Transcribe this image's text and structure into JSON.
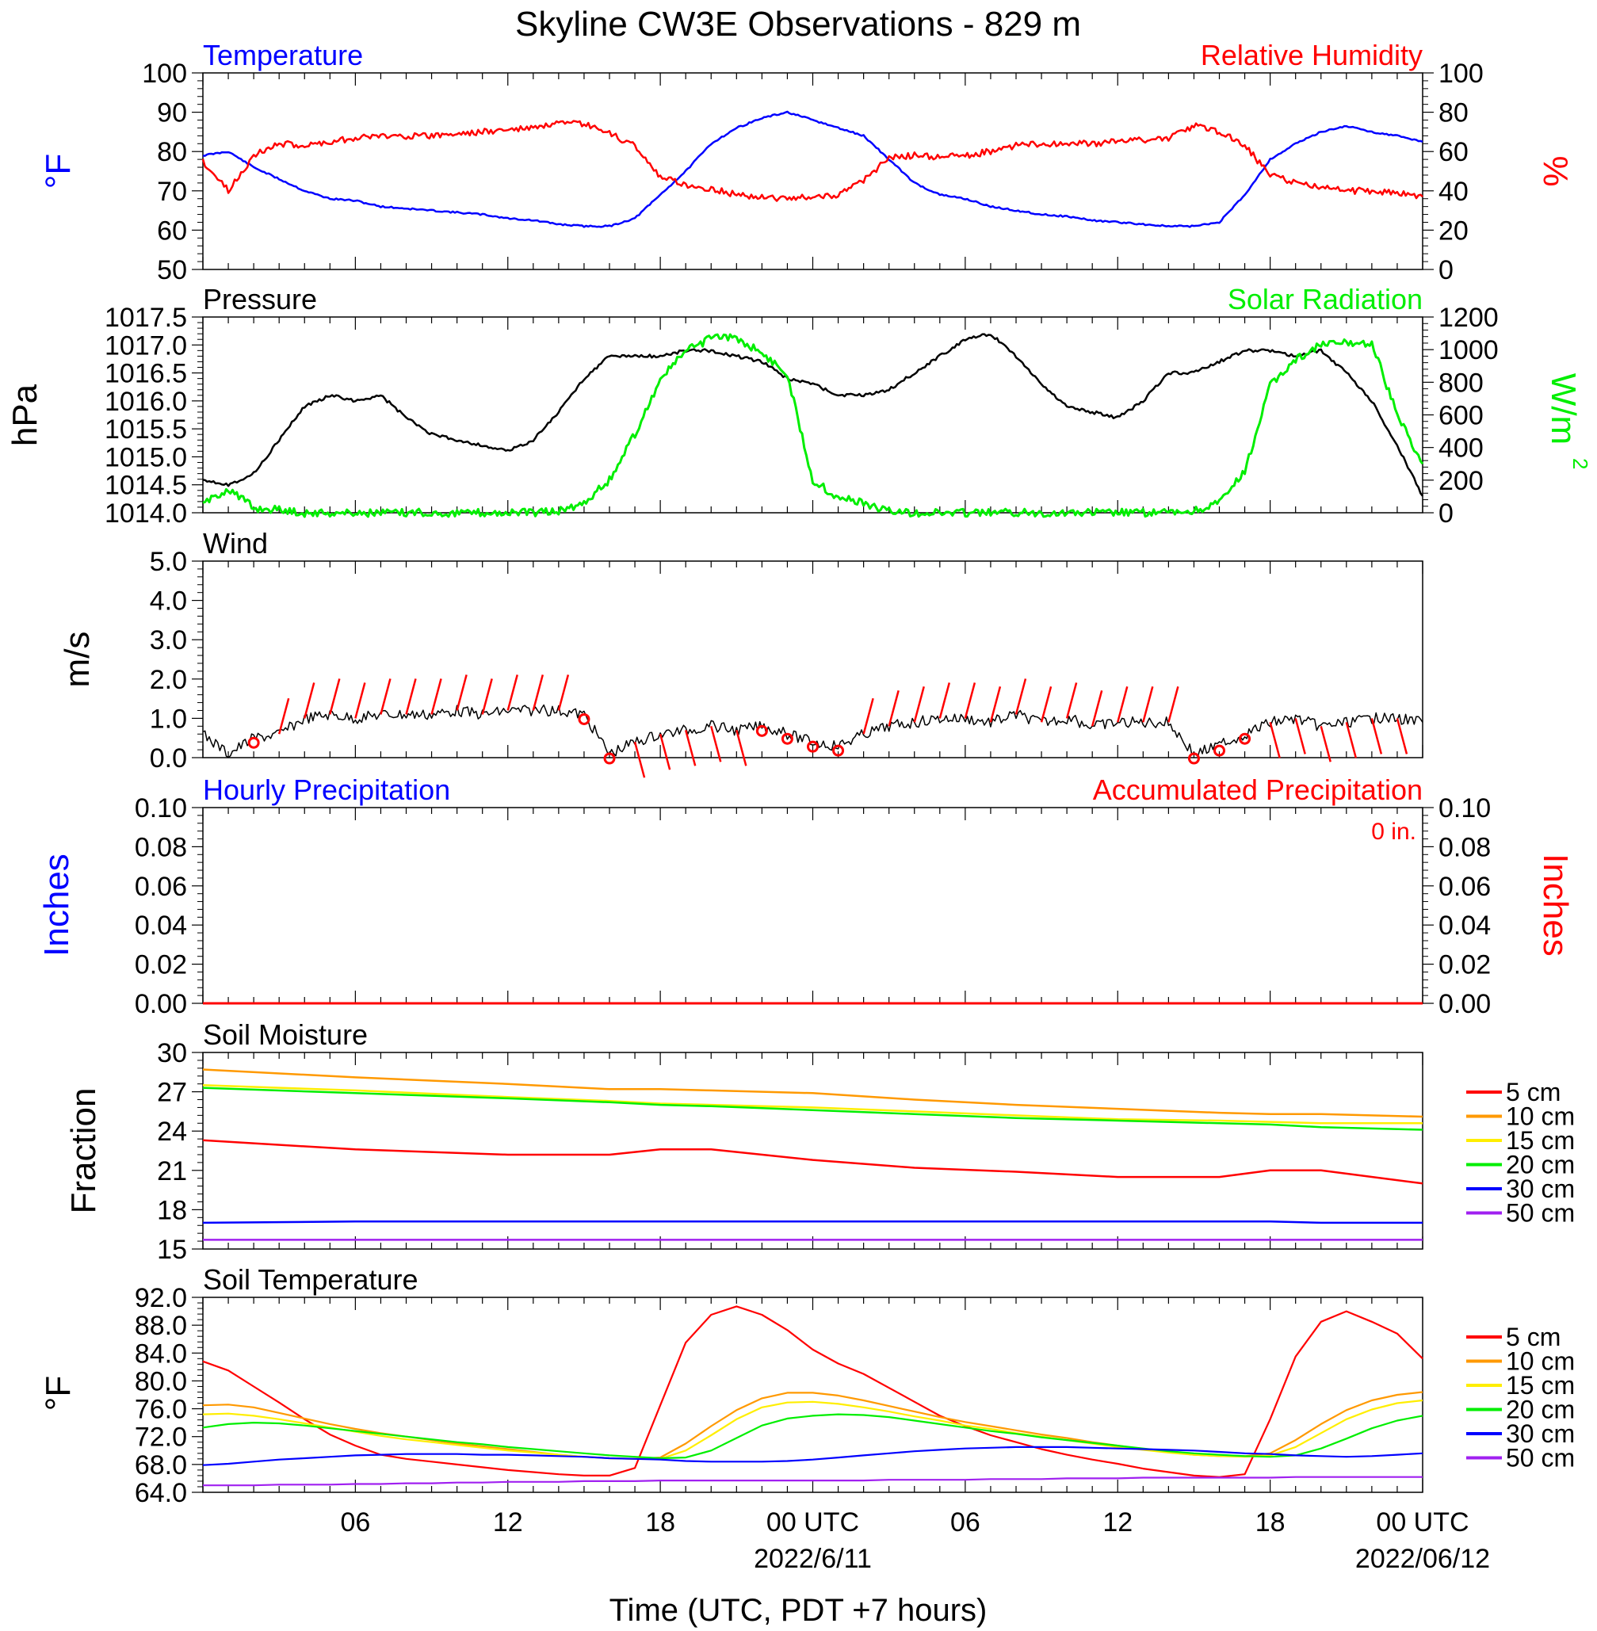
{
  "title": "Skyline CW3E Observations - 829 m",
  "xlabel": "Time (UTC, PDT +7 hours)",
  "x_ticks": [
    "06",
    "12",
    "18",
    "00 UTC",
    "06",
    "12",
    "18",
    "00 UTC"
  ],
  "x_dates": [
    "2022/6/11",
    "2022/06/12"
  ],
  "colors": {
    "blue": "#0000ff",
    "red": "#ff0000",
    "green": "#00ee00",
    "black": "#000000",
    "orange": "#ff9900",
    "yellow": "#ffee00",
    "purple": "#a020f0"
  },
  "chart_data": [
    {
      "type": "line",
      "left_title": "Temperature",
      "right_title": "Relative Humidity",
      "ylabel_left": "°F",
      "ylabel_right": "%",
      "ylim_left": [
        50,
        100
      ],
      "ylim_right": [
        0,
        100
      ],
      "yticks_left": [
        "100",
        "90",
        "80",
        "70",
        "60",
        "50"
      ],
      "yticks_right": [
        "100",
        "80",
        "60",
        "40",
        "20",
        "0"
      ],
      "x_hours": [
        0,
        1,
        2,
        3,
        4,
        5,
        6,
        7,
        8,
        9,
        10,
        11,
        12,
        13,
        14,
        15,
        16,
        17,
        18,
        19,
        20,
        21,
        22,
        23,
        24,
        25,
        26,
        27,
        28,
        29,
        30,
        31,
        32,
        33,
        34,
        35,
        36,
        37,
        38,
        39,
        40,
        41,
        42,
        43,
        44,
        45,
        46,
        47,
        48
      ],
      "series": [
        {
          "name": "Temperature",
          "color": "#0000ff",
          "values": [
            79,
            80,
            76,
            73,
            70,
            68,
            67.5,
            66,
            65.5,
            65,
            64.5,
            64,
            63,
            62.5,
            61.5,
            61,
            61,
            63,
            69,
            75,
            82,
            86,
            88.5,
            90,
            88,
            86,
            84,
            78,
            72,
            69,
            68,
            66,
            65,
            64,
            63.5,
            62.5,
            62,
            61.5,
            61,
            61,
            62,
            69,
            78,
            82,
            85,
            86.5,
            85,
            84,
            82.5
          ]
        },
        {
          "name": "Relative Humidity",
          "color": "#ff0000",
          "values": [
            55,
            40,
            58,
            64,
            63,
            65,
            67,
            68,
            68,
            68,
            69,
            70,
            71,
            72,
            74,
            74,
            69,
            63,
            47,
            43,
            41,
            38,
            37,
            36,
            37,
            38,
            45,
            57,
            58,
            57,
            58,
            60,
            63,
            64,
            64,
            64,
            65,
            66,
            67,
            73,
            70,
            63,
            48,
            44,
            42,
            40,
            40,
            39,
            37
          ]
        }
      ]
    },
    {
      "type": "line",
      "left_title": "Pressure",
      "right_title": "Solar Radiation",
      "ylabel_left": "hPa",
      "ylabel_right": "W/m",
      "ylabel_right_sup": "2",
      "ylim_left": [
        1014.0,
        1017.5
      ],
      "ylim_right": [
        0,
        1200
      ],
      "yticks_left": [
        "1017.5",
        "1017.0",
        "1016.5",
        "1016.0",
        "1015.5",
        "1015.0",
        "1014.5",
        "1014.0"
      ],
      "yticks_right": [
        "1200",
        "1000",
        "800",
        "600",
        "400",
        "200",
        "0"
      ],
      "x_hours": [
        0,
        1,
        2,
        3,
        4,
        5,
        6,
        7,
        8,
        9,
        10,
        11,
        12,
        13,
        14,
        15,
        16,
        17,
        18,
        19,
        20,
        21,
        22,
        23,
        24,
        25,
        26,
        27,
        28,
        29,
        30,
        31,
        32,
        33,
        34,
        35,
        36,
        37,
        38,
        39,
        40,
        41,
        42,
        43,
        44,
        45,
        46,
        47,
        48
      ],
      "series": [
        {
          "name": "Pressure",
          "color": "#000000",
          "values": [
            1014.6,
            1014.5,
            1014.7,
            1015.3,
            1015.9,
            1016.1,
            1016.0,
            1016.1,
            1015.7,
            1015.4,
            1015.3,
            1015.2,
            1015.1,
            1015.3,
            1015.8,
            1016.4,
            1016.8,
            1016.8,
            1016.8,
            1016.9,
            1016.9,
            1016.8,
            1016.7,
            1016.4,
            1016.3,
            1016.1,
            1016.1,
            1016.2,
            1016.5,
            1016.8,
            1017.1,
            1017.2,
            1016.8,
            1016.3,
            1015.9,
            1015.8,
            1015.7,
            1016.0,
            1016.5,
            1016.5,
            1016.7,
            1016.9,
            1016.9,
            1016.8,
            1016.9,
            1016.5,
            1016.0,
            1015.2,
            1014.3
          ]
        },
        {
          "name": "Solar Radiation",
          "color": "#00ee00",
          "values": [
            50,
            150,
            30,
            20,
            0,
            0,
            0,
            0,
            0,
            0,
            0,
            0,
            0,
            0,
            10,
            60,
            200,
            480,
            820,
            990,
            1070,
            1070,
            980,
            850,
            200,
            90,
            60,
            10,
            0,
            0,
            0,
            0,
            0,
            0,
            0,
            0,
            0,
            0,
            0,
            10,
            60,
            250,
            780,
            940,
            1030,
            1040,
            1040,
            600,
            300
          ]
        }
      ]
    },
    {
      "type": "line",
      "left_title": "Wind",
      "ylabel_left": "m/s",
      "ylim_left": [
        0,
        5.0
      ],
      "yticks_left": [
        "5.0",
        "4.0",
        "3.0",
        "2.0",
        "1.0",
        "0.0"
      ],
      "x_hours": [
        0,
        1,
        2,
        3,
        4,
        5,
        6,
        7,
        8,
        9,
        10,
        11,
        12,
        13,
        14,
        15,
        16,
        17,
        18,
        19,
        20,
        21,
        22,
        23,
        24,
        25,
        26,
        27,
        28,
        29,
        30,
        31,
        32,
        33,
        34,
        35,
        36,
        37,
        38,
        39,
        40,
        41,
        42,
        43,
        44,
        45,
        46,
        47,
        48
      ],
      "series": [
        {
          "name": "Wind",
          "color": "#000000",
          "values": [
            0.6,
            0.1,
            0.5,
            0.6,
            1.0,
            1.1,
            1.0,
            1.1,
            1.1,
            1.1,
            1.2,
            1.1,
            1.2,
            1.2,
            1.2,
            1.1,
            0.1,
            0.4,
            0.6,
            0.7,
            0.8,
            0.7,
            0.8,
            0.6,
            0.4,
            0.3,
            0.6,
            0.8,
            0.9,
            1.0,
            1.0,
            0.9,
            1.1,
            0.9,
            1.0,
            0.8,
            0.9,
            0.9,
            0.9,
            0.1,
            0.3,
            0.6,
            0.9,
            1.0,
            0.8,
            0.9,
            1.0,
            1.0,
            0.9
          ]
        }
      ],
      "barb_hours": [
        2,
        3,
        4,
        5,
        6,
        7,
        8,
        9,
        10,
        11,
        12,
        13,
        14,
        15,
        16,
        17,
        18,
        19,
        20,
        21,
        22,
        23,
        24,
        25,
        26,
        27,
        28,
        29,
        30,
        31,
        32,
        33,
        34,
        35,
        36,
        37,
        38,
        39,
        40,
        41,
        42,
        43,
        44,
        45,
        46,
        47
      ],
      "calm_hours": [
        2,
        15,
        16,
        22,
        23,
        24,
        25,
        39,
        40,
        41
      ]
    },
    {
      "type": "bar",
      "left_title": "Hourly Precipitation",
      "right_title": "Accumulated Precipitation",
      "annotation": "0 in.",
      "ylabel_left": "Inches",
      "ylabel_right": "Inches",
      "ylim_left": [
        0,
        0.1
      ],
      "ylim_right": [
        0,
        0.1
      ],
      "yticks_left": [
        "0.10",
        "0.08",
        "0.06",
        "0.04",
        "0.02",
        "0.00"
      ],
      "yticks_right": [
        "0.10",
        "0.08",
        "0.06",
        "0.04",
        "0.02",
        "0.00"
      ],
      "x_hours": [
        0,
        48
      ],
      "series": [
        {
          "name": "Accumulated Precipitation",
          "color": "#ff0000",
          "values": [
            0,
            0
          ]
        }
      ]
    },
    {
      "type": "line",
      "left_title": "Soil Moisture",
      "ylabel_left": "Fraction",
      "ylim_left": [
        15,
        30
      ],
      "yticks_left": [
        "30",
        "27",
        "24",
        "21",
        "18",
        "15"
      ],
      "x_hours": [
        0,
        6,
        12,
        16,
        18,
        20,
        24,
        28,
        32,
        36,
        40,
        42,
        44,
        48
      ],
      "legend": [
        "5 cm",
        "10 cm",
        "15 cm",
        "20 cm",
        "30 cm",
        "50 cm"
      ],
      "series": [
        {
          "name": "5 cm",
          "color": "#ff0000",
          "values": [
            23.3,
            22.6,
            22.2,
            22.2,
            22.6,
            22.6,
            21.8,
            21.2,
            20.9,
            20.5,
            20.5,
            21.0,
            21.0,
            20.0
          ]
        },
        {
          "name": "10 cm",
          "color": "#ff9900",
          "values": [
            28.7,
            28.1,
            27.6,
            27.2,
            27.2,
            27.1,
            26.9,
            26.4,
            26.0,
            25.7,
            25.4,
            25.3,
            25.3,
            25.1
          ]
        },
        {
          "name": "15 cm",
          "color": "#ffee00",
          "values": [
            27.5,
            27.1,
            26.6,
            26.3,
            26.1,
            26.0,
            25.8,
            25.5,
            25.2,
            24.9,
            24.8,
            24.7,
            24.6,
            24.6
          ]
        },
        {
          "name": "20 cm",
          "color": "#00ee00",
          "values": [
            27.3,
            26.9,
            26.5,
            26.2,
            26.0,
            25.9,
            25.6,
            25.3,
            25.0,
            24.8,
            24.6,
            24.5,
            24.3,
            24.1
          ]
        },
        {
          "name": "30 cm",
          "color": "#0000ff",
          "values": [
            17.0,
            17.1,
            17.1,
            17.1,
            17.1,
            17.1,
            17.1,
            17.1,
            17.1,
            17.1,
            17.1,
            17.1,
            17.0,
            17.0
          ]
        },
        {
          "name": "50 cm",
          "color": "#a020f0",
          "values": [
            15.7,
            15.7,
            15.7,
            15.7,
            15.7,
            15.7,
            15.7,
            15.7,
            15.7,
            15.7,
            15.7,
            15.7,
            15.7,
            15.7
          ]
        }
      ]
    },
    {
      "type": "line",
      "left_title": "Soil Temperature",
      "ylabel_left": "°F",
      "ylim_left": [
        64.0,
        92.0
      ],
      "yticks_left": [
        "92.0",
        "88.0",
        "84.0",
        "80.0",
        "76.0",
        "72.0",
        "68.0",
        "64.0"
      ],
      "x_hours": [
        0,
        1,
        2,
        3,
        4,
        5,
        6,
        7,
        8,
        9,
        10,
        11,
        12,
        13,
        14,
        15,
        16,
        17,
        18,
        19,
        20,
        21,
        22,
        23,
        24,
        25,
        26,
        27,
        28,
        29,
        30,
        31,
        32,
        33,
        34,
        35,
        36,
        37,
        38,
        39,
        40,
        41,
        42,
        43,
        44,
        45,
        46,
        47,
        48
      ],
      "legend": [
        "5 cm",
        "10 cm",
        "15 cm",
        "20 cm",
        "30 cm",
        "50 cm"
      ],
      "series": [
        {
          "name": "5 cm",
          "color": "#ff0000",
          "values": [
            82.8,
            81.5,
            79.2,
            76.9,
            74.5,
            72.3,
            70.7,
            69.4,
            68.8,
            68.4,
            68.0,
            67.6,
            67.2,
            66.9,
            66.6,
            66.4,
            66.4,
            67.5,
            76.5,
            85.5,
            89.5,
            90.7,
            89.5,
            87.3,
            84.5,
            82.5,
            81.0,
            79.0,
            77.0,
            75.0,
            73.5,
            72.2,
            71.2,
            70.2,
            69.4,
            68.7,
            68.1,
            67.4,
            66.9,
            66.4,
            66.2,
            66.6,
            74.5,
            83.5,
            88.5,
            90.0,
            88.5,
            86.8,
            83.2
          ]
        },
        {
          "name": "10 cm",
          "color": "#ff9900",
          "values": [
            76.5,
            76.6,
            76.2,
            75.4,
            74.6,
            73.8,
            73.1,
            72.5,
            72.0,
            71.5,
            71.0,
            70.6,
            70.2,
            69.8,
            69.4,
            69.1,
            68.9,
            68.8,
            69.0,
            71.0,
            73.5,
            75.8,
            77.5,
            78.3,
            78.3,
            77.9,
            77.2,
            76.4,
            75.6,
            74.8,
            74.1,
            73.5,
            72.9,
            72.3,
            71.8,
            71.2,
            70.7,
            70.2,
            69.8,
            69.4,
            69.2,
            69.2,
            69.6,
            71.5,
            73.8,
            75.8,
            77.2,
            78.0,
            78.4
          ]
        },
        {
          "name": "15 cm",
          "color": "#ffee00",
          "values": [
            75.2,
            75.3,
            75.0,
            74.5,
            73.9,
            73.3,
            72.7,
            72.1,
            71.6,
            71.2,
            70.8,
            70.4,
            70.0,
            69.7,
            69.4,
            69.1,
            68.9,
            68.8,
            68.8,
            70.0,
            72.2,
            74.5,
            76.2,
            76.9,
            77.0,
            76.7,
            76.2,
            75.6,
            74.9,
            74.3,
            73.6,
            73.1,
            72.5,
            72.0,
            71.5,
            71.0,
            70.5,
            70.1,
            69.7,
            69.4,
            69.2,
            69.1,
            69.3,
            70.5,
            72.5,
            74.5,
            75.9,
            76.8,
            77.2
          ]
        },
        {
          "name": "20 cm",
          "color": "#00ee00",
          "values": [
            73.3,
            73.8,
            74.0,
            73.9,
            73.6,
            73.2,
            72.8,
            72.4,
            72.0,
            71.6,
            71.2,
            70.9,
            70.5,
            70.2,
            69.9,
            69.6,
            69.3,
            69.1,
            68.9,
            69.0,
            70.0,
            71.8,
            73.6,
            74.6,
            75.0,
            75.2,
            75.1,
            74.8,
            74.3,
            73.8,
            73.3,
            72.8,
            72.4,
            71.9,
            71.5,
            71.1,
            70.7,
            70.3,
            69.9,
            69.6,
            69.4,
            69.2,
            69.1,
            69.3,
            70.3,
            71.7,
            73.2,
            74.3,
            75.0
          ]
        },
        {
          "name": "30 cm",
          "color": "#0000ff",
          "values": [
            67.9,
            68.1,
            68.4,
            68.7,
            68.9,
            69.1,
            69.3,
            69.4,
            69.5,
            69.5,
            69.5,
            69.4,
            69.4,
            69.3,
            69.2,
            69.1,
            68.9,
            68.8,
            68.7,
            68.5,
            68.4,
            68.4,
            68.4,
            68.5,
            68.7,
            69.0,
            69.3,
            69.6,
            69.9,
            70.1,
            70.3,
            70.4,
            70.5,
            70.5,
            70.5,
            70.4,
            70.3,
            70.2,
            70.1,
            70.0,
            69.8,
            69.6,
            69.5,
            69.3,
            69.2,
            69.1,
            69.2,
            69.4,
            69.6
          ]
        },
        {
          "name": "50 cm",
          "color": "#a020f0",
          "values": [
            65.0,
            65.0,
            65.0,
            65.1,
            65.1,
            65.1,
            65.2,
            65.2,
            65.3,
            65.3,
            65.4,
            65.4,
            65.5,
            65.5,
            65.5,
            65.6,
            65.6,
            65.6,
            65.7,
            65.7,
            65.7,
            65.7,
            65.7,
            65.7,
            65.7,
            65.7,
            65.7,
            65.8,
            65.8,
            65.8,
            65.8,
            65.9,
            65.9,
            65.9,
            66.0,
            66.0,
            66.0,
            66.1,
            66.1,
            66.1,
            66.1,
            66.1,
            66.1,
            66.2,
            66.2,
            66.2,
            66.2,
            66.2,
            66.2
          ]
        }
      ]
    }
  ]
}
